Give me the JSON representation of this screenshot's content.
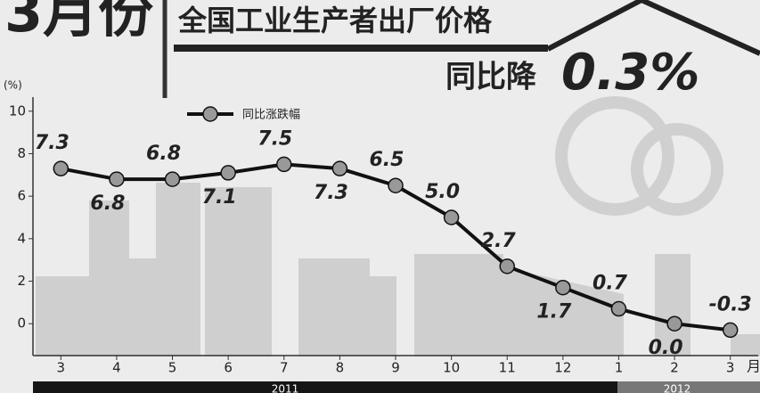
{
  "chart_data": {
    "type": "line",
    "title": "3月份",
    "headline": "全国工业生产者出厂价格",
    "subtitle": "同比降",
    "highlight": "0.3%",
    "y_label": "(%)",
    "x_label": "月",
    "categories": [
      "3",
      "4",
      "5",
      "6",
      "7",
      "8",
      "9",
      "10",
      "11",
      "12",
      "1",
      "2",
      "3"
    ],
    "x_groups": [
      "2011",
      "2012"
    ],
    "series": [
      {
        "name": "同比涨跌幅",
        "color": "#111111",
        "values": [
          7.3,
          6.8,
          6.8,
          7.1,
          7.5,
          7.3,
          6.5,
          5.0,
          2.7,
          1.7,
          0.7,
          0.0,
          -0.3
        ],
        "value_labels": [
          "7.3",
          "6.8",
          "6.8",
          "7.1",
          "7.5",
          "7.3",
          "6.5",
          "5.0",
          "2.7",
          "1.7",
          "0.7",
          "0.0",
          "-0.3"
        ]
      }
    ],
    "ylim": [
      -1.5,
      11.5
    ],
    "yticks": [
      0,
      2,
      4,
      6,
      8,
      10
    ]
  }
}
